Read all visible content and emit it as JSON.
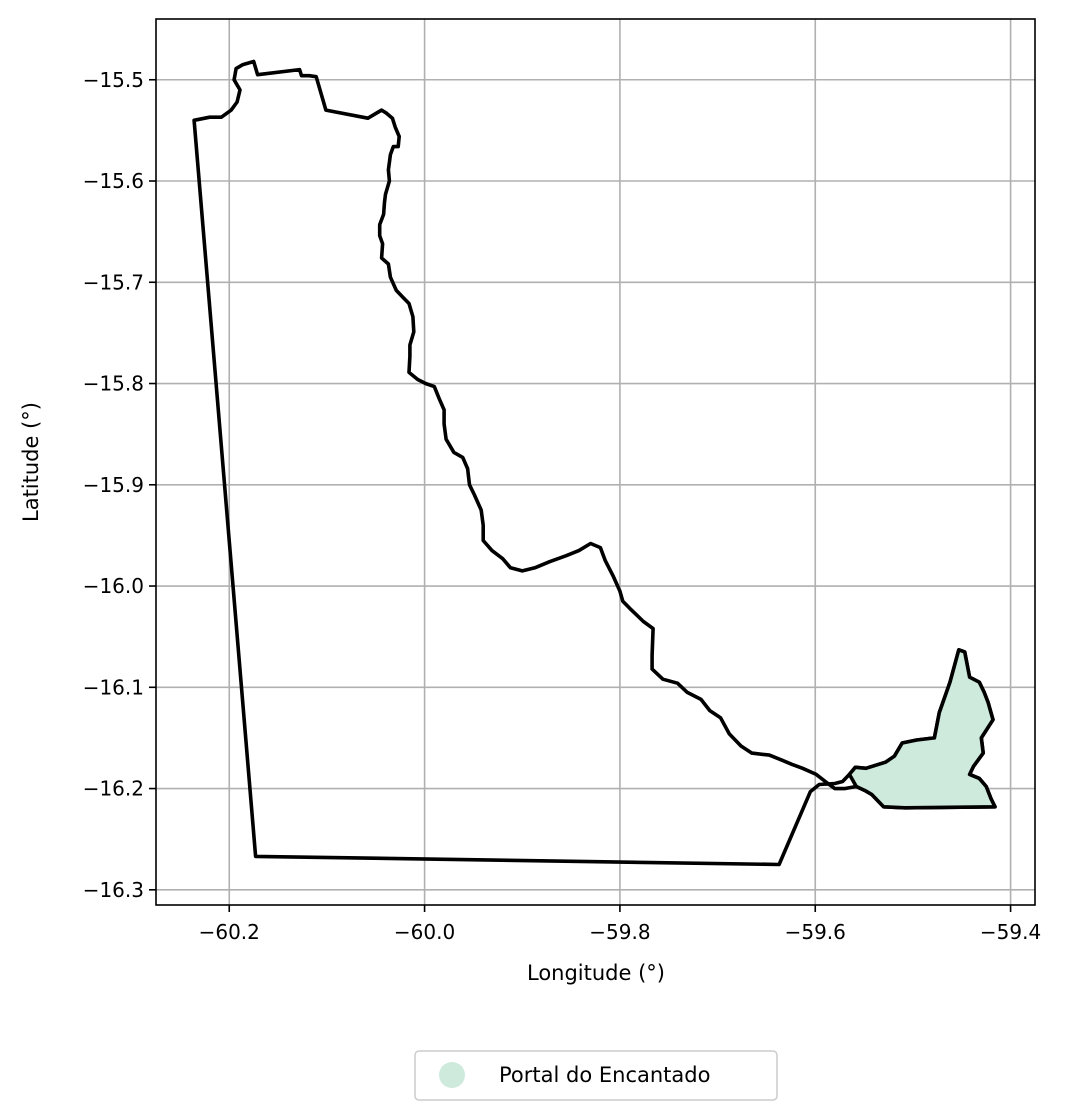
{
  "chart_data": {
    "type": "map",
    "xlabel": "Longitude (°)",
    "ylabel": "Latitude (°)",
    "xlim": [
      -60.275,
      -59.375
    ],
    "ylim": [
      -16.315,
      -15.44
    ],
    "xticks": [
      -60.2,
      -60.0,
      -59.8,
      -59.6,
      -59.4
    ],
    "yticks": [
      -15.5,
      -15.6,
      -15.7,
      -15.8,
      -15.9,
      -16.0,
      -16.1,
      -16.2,
      -16.3
    ],
    "xtick_labels": [
      "−60.2",
      "−60.0",
      "−59.8",
      "−59.6",
      "−59.4"
    ],
    "ytick_labels": [
      "−15.5",
      "−15.6",
      "−15.7",
      "−15.8",
      "−15.9",
      "−16.0",
      "−16.1",
      "−16.2",
      "−16.3"
    ],
    "grid": true,
    "legend": {
      "placement": "below",
      "entries": [
        {
          "label": "Portal do Encantado",
          "color": "#cdeadc"
        }
      ]
    },
    "regions": [
      {
        "name": "outer-boundary",
        "fill": "none",
        "edge": "#000000",
        "coords": [
          [
            -60.236,
            -15.54
          ],
          [
            -60.22,
            -15.537
          ],
          [
            -60.208,
            -15.537
          ],
          [
            -60.198,
            -15.53
          ],
          [
            -60.192,
            -15.522
          ],
          [
            -60.189,
            -15.51
          ],
          [
            -60.195,
            -15.5
          ],
          [
            -60.193,
            -15.489
          ],
          [
            -60.186,
            -15.485
          ],
          [
            -60.175,
            -15.482
          ],
          [
            -60.171,
            -15.495
          ],
          [
            -60.128,
            -15.49
          ],
          [
            -60.126,
            -15.496
          ],
          [
            -60.118,
            -15.496
          ],
          [
            -60.111,
            -15.497
          ],
          [
            -60.101,
            -15.53
          ],
          [
            -60.058,
            -15.538
          ],
          [
            -60.044,
            -15.53
          ],
          [
            -60.039,
            -15.533
          ],
          [
            -60.033,
            -15.538
          ],
          [
            -60.03,
            -15.547
          ],
          [
            -60.026,
            -15.556
          ],
          [
            -60.027,
            -15.566
          ],
          [
            -60.032,
            -15.566
          ],
          [
            -60.035,
            -15.574
          ],
          [
            -60.037,
            -15.589
          ],
          [
            -60.036,
            -15.6
          ],
          [
            -60.04,
            -15.613
          ],
          [
            -60.041,
            -15.621
          ],
          [
            -60.042,
            -15.633
          ],
          [
            -60.046,
            -15.643
          ],
          [
            -60.046,
            -15.654
          ],
          [
            -60.043,
            -15.662
          ],
          [
            -60.044,
            -15.676
          ],
          [
            -60.037,
            -15.682
          ],
          [
            -60.035,
            -15.695
          ],
          [
            -60.029,
            -15.708
          ],
          [
            -60.022,
            -15.715
          ],
          [
            -60.016,
            -15.721
          ],
          [
            -60.012,
            -15.734
          ],
          [
            -60.011,
            -15.749
          ],
          [
            -60.015,
            -15.762
          ],
          [
            -60.015,
            -15.773
          ],
          [
            -60.016,
            -15.789
          ],
          [
            -60.007,
            -15.796
          ],
          [
            -59.999,
            -15.8
          ],
          [
            -59.99,
            -15.803
          ],
          [
            -59.985,
            -15.815
          ],
          [
            -59.98,
            -15.826
          ],
          [
            -59.98,
            -15.84
          ],
          [
            -59.978,
            -15.855
          ],
          [
            -59.97,
            -15.868
          ],
          [
            -59.961,
            -15.873
          ],
          [
            -59.956,
            -15.884
          ],
          [
            -59.954,
            -15.9
          ],
          [
            -59.949,
            -15.91
          ],
          [
            -59.942,
            -15.925
          ],
          [
            -59.94,
            -15.94
          ],
          [
            -59.94,
            -15.955
          ],
          [
            -59.931,
            -15.965
          ],
          [
            -59.92,
            -15.973
          ],
          [
            -59.912,
            -15.982
          ],
          [
            -59.9,
            -15.985
          ],
          [
            -59.887,
            -15.982
          ],
          [
            -59.872,
            -15.976
          ],
          [
            -59.855,
            -15.97
          ],
          [
            -59.842,
            -15.965
          ],
          [
            -59.83,
            -15.958
          ],
          [
            -59.82,
            -15.962
          ],
          [
            -59.815,
            -15.975
          ],
          [
            -59.807,
            -15.99
          ],
          [
            -59.8,
            -16.005
          ],
          [
            -59.797,
            -16.015
          ],
          [
            -59.79,
            -16.022
          ],
          [
            -59.776,
            -16.035
          ],
          [
            -59.766,
            -16.042
          ],
          [
            -59.767,
            -16.068
          ],
          [
            -59.767,
            -16.082
          ],
          [
            -59.756,
            -16.092
          ],
          [
            -59.741,
            -16.096
          ],
          [
            -59.731,
            -16.105
          ],
          [
            -59.717,
            -16.112
          ],
          [
            -59.708,
            -16.123
          ],
          [
            -59.697,
            -16.13
          ],
          [
            -59.688,
            -16.146
          ],
          [
            -59.676,
            -16.158
          ],
          [
            -59.665,
            -16.165
          ],
          [
            -59.647,
            -16.167
          ],
          [
            -59.634,
            -16.172
          ],
          [
            -59.624,
            -16.176
          ],
          [
            -59.613,
            -16.18
          ],
          [
            -59.599,
            -16.186
          ],
          [
            -59.587,
            -16.195
          ],
          [
            -59.58,
            -16.2
          ],
          [
            -59.57,
            -16.2
          ],
          [
            -59.558,
            -16.198
          ],
          [
            -59.549,
            -16.202
          ],
          [
            -59.542,
            -16.206
          ],
          [
            -59.53,
            -16.218
          ],
          [
            -59.508,
            -16.219
          ],
          [
            -59.416,
            -16.218
          ],
          [
            -59.42,
            -16.21
          ],
          [
            -59.425,
            -16.198
          ],
          [
            -59.432,
            -16.19
          ],
          [
            -59.442,
            -16.186
          ],
          [
            -59.438,
            -16.178
          ],
          [
            -59.428,
            -16.165
          ],
          [
            -59.43,
            -16.15
          ],
          [
            -59.418,
            -16.132
          ],
          [
            -59.423,
            -16.115
          ],
          [
            -59.427,
            -16.105
          ],
          [
            -59.432,
            -16.095
          ],
          [
            -59.442,
            -16.09
          ],
          [
            -59.447,
            -16.065
          ],
          [
            -59.453,
            -16.063
          ],
          [
            -59.462,
            -16.095
          ],
          [
            -59.473,
            -16.125
          ],
          [
            -59.478,
            -16.15
          ],
          [
            -59.496,
            -16.152
          ],
          [
            -59.511,
            -16.155
          ],
          [
            -59.519,
            -16.168
          ],
          [
            -59.528,
            -16.174
          ],
          [
            -59.548,
            -16.18
          ],
          [
            -59.559,
            -16.179
          ],
          [
            -59.565,
            -16.186
          ],
          [
            -59.572,
            -16.193
          ],
          [
            -59.58,
            -16.195
          ],
          [
            -59.596,
            -16.196
          ],
          [
            -59.605,
            -16.203
          ],
          [
            -59.637,
            -16.275
          ],
          [
            -60.173,
            -16.267
          ],
          [
            -60.236,
            -15.54
          ]
        ]
      },
      {
        "name": "Portal do Encantado",
        "fill": "#cdeadc",
        "edge": "#000000",
        "coords": [
          [
            -59.565,
            -16.186
          ],
          [
            -59.559,
            -16.179
          ],
          [
            -59.548,
            -16.18
          ],
          [
            -59.528,
            -16.174
          ],
          [
            -59.519,
            -16.168
          ],
          [
            -59.511,
            -16.155
          ],
          [
            -59.496,
            -16.152
          ],
          [
            -59.478,
            -16.15
          ],
          [
            -59.473,
            -16.125
          ],
          [
            -59.462,
            -16.095
          ],
          [
            -59.453,
            -16.063
          ],
          [
            -59.447,
            -16.065
          ],
          [
            -59.442,
            -16.09
          ],
          [
            -59.432,
            -16.095
          ],
          [
            -59.427,
            -16.105
          ],
          [
            -59.423,
            -16.115
          ],
          [
            -59.418,
            -16.132
          ],
          [
            -59.43,
            -16.15
          ],
          [
            -59.428,
            -16.165
          ],
          [
            -59.438,
            -16.178
          ],
          [
            -59.442,
            -16.186
          ],
          [
            -59.432,
            -16.19
          ],
          [
            -59.425,
            -16.198
          ],
          [
            -59.42,
            -16.21
          ],
          [
            -59.416,
            -16.218
          ],
          [
            -59.508,
            -16.219
          ],
          [
            -59.53,
            -16.218
          ],
          [
            -59.542,
            -16.206
          ],
          [
            -59.549,
            -16.202
          ],
          [
            -59.558,
            -16.198
          ],
          [
            -59.565,
            -16.186
          ]
        ]
      }
    ]
  }
}
